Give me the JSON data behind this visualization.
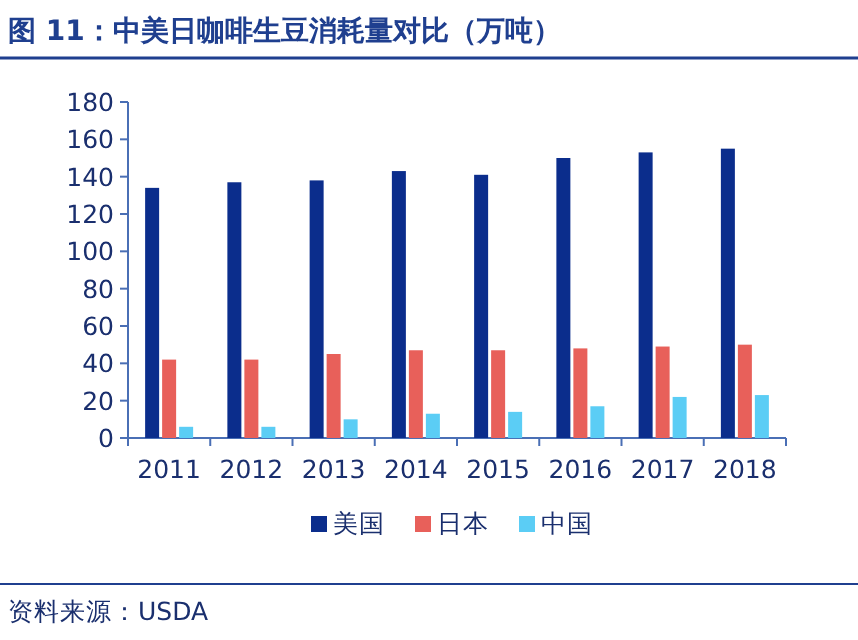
{
  "chart_data": {
    "type": "bar",
    "title": "图 11：中美日咖啡生豆消耗量对比（万吨）",
    "categories": [
      "2011",
      "2012",
      "2013",
      "2014",
      "2015",
      "2016",
      "2017",
      "2018"
    ],
    "series": [
      {
        "name": "美国",
        "color": "#0b2d8c",
        "values": [
          134,
          137,
          138,
          143,
          141,
          150,
          153,
          155
        ]
      },
      {
        "name": "日本",
        "color": "#e8605a",
        "values": [
          42,
          42,
          45,
          47,
          47,
          48,
          49,
          50
        ]
      },
      {
        "name": "中国",
        "color": "#5bcdf5",
        "values": [
          6,
          6,
          10,
          13,
          14,
          17,
          22,
          23
        ]
      }
    ],
    "ylim": [
      0,
      180
    ],
    "yticks": [
      0,
      20,
      40,
      60,
      80,
      100,
      120,
      140,
      160,
      180
    ],
    "legend": "bottom",
    "annotations": [
      "资料来源：USDA"
    ]
  }
}
